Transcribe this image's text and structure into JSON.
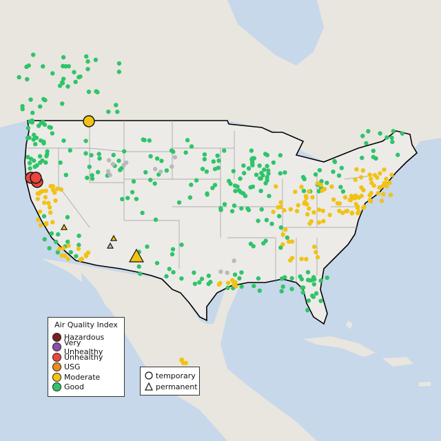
{
  "map": {
    "colors": {
      "ocean": "#c6d8ea",
      "land": "#ecebe8",
      "land_foreign": "#e9e6df",
      "border": "#000000",
      "state_lines": "#9a9a9a",
      "good": "#2fc46a",
      "moderate": "#f2c214",
      "usg": "#f08a1c",
      "unhealthy": "#e8473e",
      "very_unhealthy": "#8e4cae",
      "hazardous": "#7b2020",
      "no_data": "#b9b9b9"
    }
  },
  "legend": {
    "title": "Air Quality Index",
    "items": [
      {
        "label": "Hazardous",
        "color": "#7b2020"
      },
      {
        "label": "Very Unhealthy",
        "color": "#8e4cae"
      },
      {
        "label": "Unhealthy",
        "color": "#e8473e"
      },
      {
        "label": "USG",
        "color": "#f08a1c"
      },
      {
        "label": "Moderate",
        "color": "#f2c214"
      },
      {
        "label": "Good",
        "color": "#2fc46a"
      }
    ]
  },
  "shape_legend": {
    "items": [
      {
        "label": "temporary",
        "shape": "circle-icon"
      },
      {
        "label": "permanent",
        "shape": "triangle-icon"
      }
    ]
  }
}
